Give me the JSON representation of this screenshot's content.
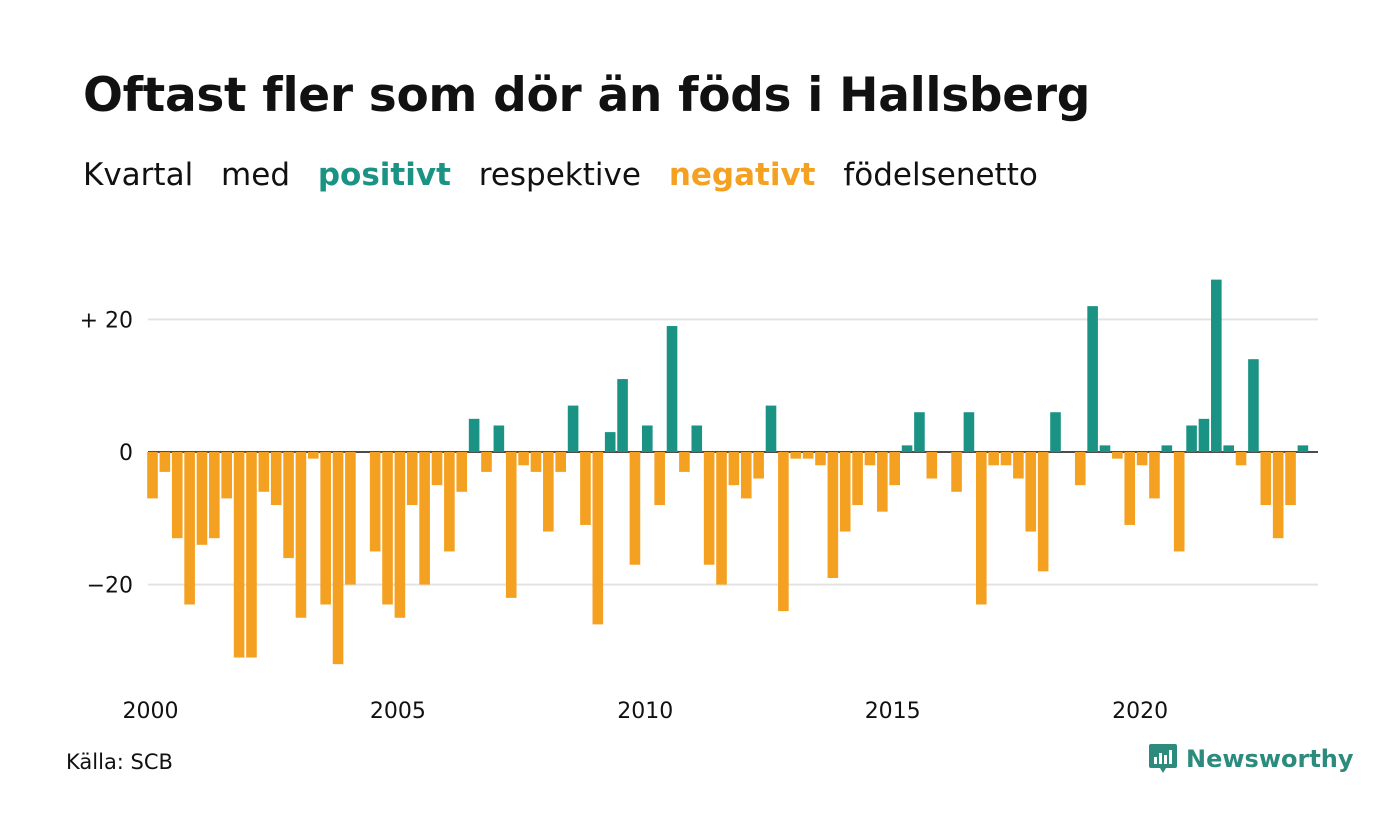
{
  "header": {
    "title": "Oftast fler som dör än föds i Hallsberg",
    "subtitle": {
      "part1": "Kvartal",
      "part2": "med",
      "positive": "positivt",
      "part3": "respektive",
      "negative": "negativt",
      "part4": "födelsenetto"
    }
  },
  "colors": {
    "positive": "#1a9384",
    "negative": "#f4a020",
    "grid": "#e3e3e3",
    "zero_line": "#111111",
    "brand": "#2c8b7c"
  },
  "chart_data": {
    "type": "bar",
    "x_start": "2000 Q1",
    "x_ticks": [
      "2000",
      "2005",
      "2010",
      "2015",
      "2020"
    ],
    "y_ticks": [
      {
        "value": 20,
        "label": "+ 20"
      },
      {
        "value": 0,
        "label": "0"
      },
      {
        "value": -20,
        "label": "−20"
      }
    ],
    "ylim": [
      -35,
      30
    ],
    "grid": true,
    "values": [
      -7,
      -3,
      -13,
      -23,
      -14,
      -13,
      -7,
      -31,
      -31,
      -6,
      -8,
      -16,
      -25,
      -1,
      -23,
      -32,
      -20,
      0,
      -15,
      -23,
      -25,
      -8,
      -20,
      -5,
      -15,
      -6,
      5,
      -3,
      4,
      -22,
      -2,
      -3,
      -12,
      -3,
      7,
      -11,
      -26,
      3,
      11,
      -17,
      4,
      -8,
      19,
      -3,
      4,
      -17,
      -20,
      -5,
      -7,
      -4,
      7,
      -24,
      -1,
      -1,
      -2,
      -19,
      -12,
      -8,
      -2,
      -9,
      -5,
      1,
      6,
      -4,
      0,
      -6,
      6,
      -23,
      -2,
      -2,
      -4,
      -12,
      -18,
      6,
      0,
      -5,
      22,
      1,
      -1,
      -11,
      -2,
      -7,
      1,
      -15,
      4,
      5,
      26,
      1,
      -2,
      14,
      -8,
      -13,
      -8,
      1
    ]
  },
  "footer": {
    "source": "Källa: SCB",
    "brand": "Newsworthy",
    "brand_icon": "newsworthy-chart-bubble-icon"
  }
}
